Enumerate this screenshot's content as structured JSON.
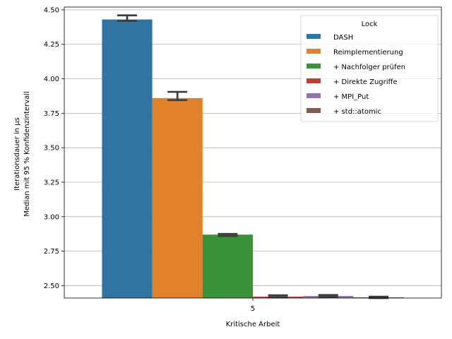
{
  "chart_data": {
    "type": "bar",
    "xlabel": "Kritische Arbeit",
    "ylabel_line1": "Iterationsdauer in µs",
    "ylabel_line2": "Median mit 95 % Konfidenzintervall",
    "categories": [
      "5"
    ],
    "ylim": [
      2.41,
      4.52
    ],
    "yticks": [
      "2.50",
      "2.75",
      "3.00",
      "3.25",
      "3.50",
      "3.75",
      "4.00",
      "4.25",
      "4.50"
    ],
    "grid": "horizontal",
    "legend": {
      "title": "Lock",
      "placement": "top-right"
    },
    "series": [
      {
        "name": "DASH",
        "color": "#3274a1",
        "value": 4.43,
        "ci": [
          4.42,
          4.46
        ]
      },
      {
        "name": "Reimplementierung",
        "color": "#e1812c",
        "value": 3.86,
        "ci": [
          3.845,
          3.905
        ]
      },
      {
        "name": "+ Nachfolger prüfen",
        "color": "#3a923a",
        "value": 2.87,
        "ci": [
          2.86,
          2.875
        ]
      },
      {
        "name": "+ Direkte Zugriffe",
        "color": "#c03d3e",
        "value": 2.42,
        "ci": [
          2.415,
          2.43
        ]
      },
      {
        "name": "+ MPI_Put",
        "color": "#9372b2",
        "value": 2.425,
        "ci": [
          2.418,
          2.432
        ]
      },
      {
        "name": "+ std::atomic",
        "color": "#845b53",
        "value": 2.415,
        "ci": [
          2.41,
          2.42
        ]
      }
    ],
    "error_bar_color": "#3d3d3d"
  }
}
